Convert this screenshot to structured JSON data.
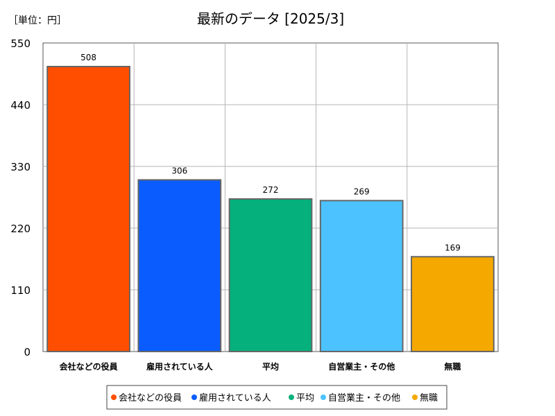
{
  "chart_data": {
    "type": "bar",
    "title": "最新のデータ [2025/3]",
    "unit_label": "［単位：円］",
    "categories": [
      "会社などの役員",
      "雇用されている人",
      "平均",
      "自営業主・その他",
      "無職"
    ],
    "values": [
      508,
      306,
      272,
      269,
      169
    ],
    "colors": [
      "#ff4e00",
      "#0a5cff",
      "#05b07c",
      "#4cc3ff",
      "#f5a800"
    ],
    "ylim": [
      0,
      550
    ],
    "yticks": [
      "0",
      "110",
      "220",
      "330",
      "440",
      "550"
    ],
    "grid": true,
    "legend": {
      "position": "bottom",
      "entries": [
        "会社などの役員",
        "雇用されている人",
        "平均",
        "自営業主・その他",
        "無職"
      ]
    }
  }
}
